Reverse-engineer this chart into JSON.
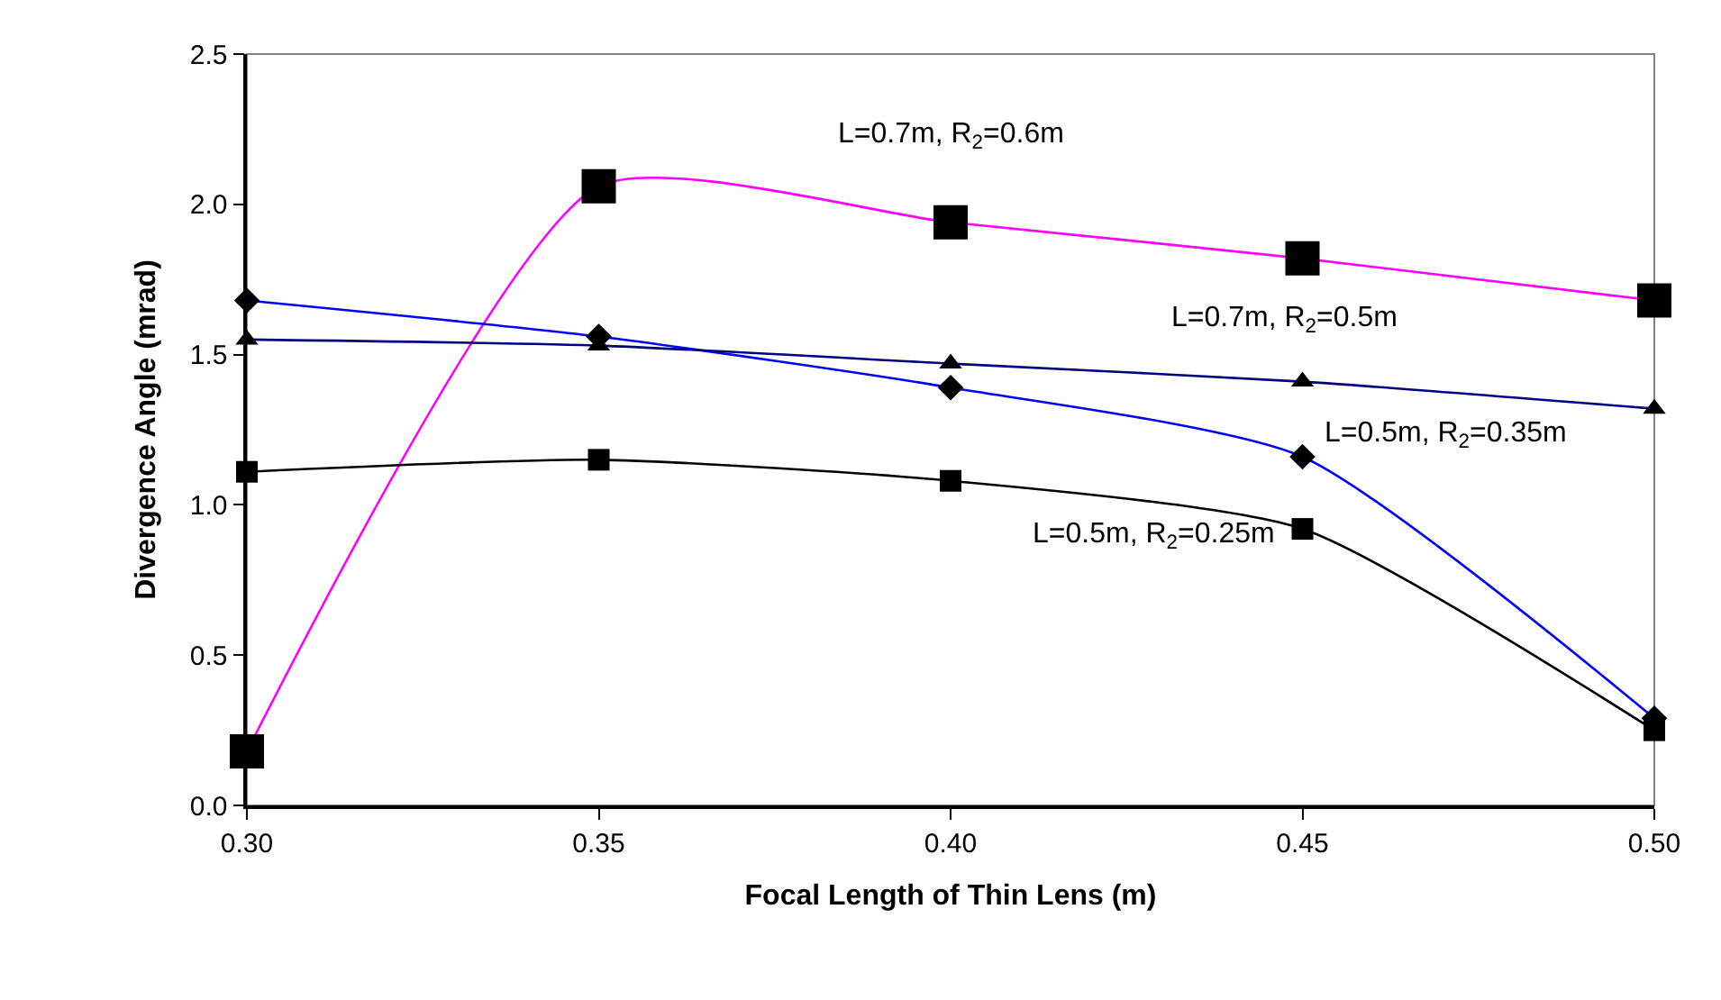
{
  "chart_data": {
    "type": "line",
    "xlabel": "Focal Length of Thin Lens (m)",
    "ylabel": "Divergence Angle (mrad)",
    "x": [
      0.3,
      0.35,
      0.4,
      0.45,
      0.5
    ],
    "series": [
      {
        "name": "L=0.7m, R$_{2}$=0.6m",
        "color": "#ff00ff",
        "marker": "square",
        "values": [
          0.18,
          2.06,
          1.94,
          1.82,
          1.68
        ]
      },
      {
        "name": "L=0.5m, R$_{2}$=0.35m",
        "color": "#0000ff",
        "marker": "diamond",
        "values": [
          1.68,
          1.56,
          1.39,
          1.16,
          0.29
        ]
      },
      {
        "name": "L=0.7m, R$_{2}$=0.5m",
        "color": "#000080",
        "marker": "triangle",
        "values": [
          1.55,
          1.53,
          1.47,
          1.41,
          1.32
        ]
      },
      {
        "name": "L=0.5m, R$_{2}$=0.25m",
        "color": "#000000",
        "marker": "square",
        "values": [
          1.11,
          1.15,
          1.08,
          0.92,
          0.25
        ]
      }
    ],
    "xlim": [
      0.3,
      0.5
    ],
    "xticks": [
      {
        "value": 0.3,
        "label": "0.30"
      },
      0.35,
      {
        "value": 0.4,
        "label": "0.40"
      },
      0.45,
      {
        "value": 0.5,
        "label": "0.50"
      }
    ],
    "ylim": [
      0.0,
      2.5
    ],
    "yticks": [
      {
        "value": 0.0,
        "label": "0.0"
      },
      0.5,
      {
        "value": 1.0,
        "label": "1.0"
      },
      1.5,
      {
        "value": 2.0,
        "label": "2.0"
      },
      2.5
    ],
    "grid": false,
    "legend": false
  }
}
